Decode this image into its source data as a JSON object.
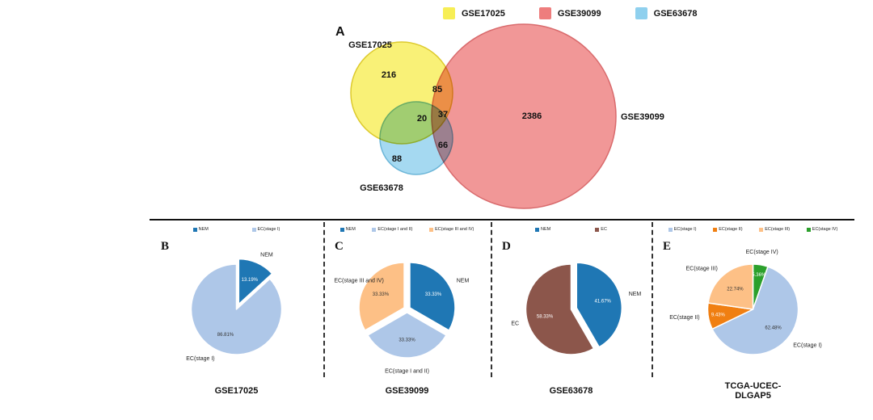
{
  "chart_data": [
    {
      "type": "venn",
      "panel_letter": "A",
      "legend": [
        {
          "label": "GSE17025",
          "color": "#f7ee55"
        },
        {
          "label": "GSE39099",
          "color": "#ee7d7d"
        },
        {
          "label": "GSE63678",
          "color": "#8fd0ee"
        }
      ],
      "sets": [
        {
          "name": "GSE17025",
          "color": "#f7ee55",
          "only_count": 216
        },
        {
          "name": "GSE39099",
          "color": "#ee7d7d",
          "only_count": 2386
        },
        {
          "name": "GSE63678",
          "color": "#8fd0ee",
          "only_count": 88
        }
      ],
      "overlaps": {
        "GSE17025_and_GSE39099": 85,
        "GSE17025_and_GSE63678": 20,
        "GSE39099_and_GSE63678": 66,
        "all_three": 37
      }
    },
    {
      "type": "pie",
      "panel_letter": "B",
      "title_lines": [
        "GSE17025"
      ],
      "slices": [
        {
          "label": "NEM",
          "value": 13.19,
          "pct": "13.19%",
          "color": "#1f77b4",
          "label_color": "#ffffff",
          "explode": 7
        },
        {
          "label": "EC(stage I)",
          "value": 86.81,
          "pct": "86.81%",
          "color": "#aec7e8",
          "label_color": "#333333",
          "explode": 0
        }
      ],
      "legend": [
        "NEM",
        "EC(stage I)"
      ]
    },
    {
      "type": "pie",
      "panel_letter": "C",
      "title_lines": [
        "GSE39099"
      ],
      "slices": [
        {
          "label": "NEM",
          "value": 33.33,
          "pct": "33.33%",
          "color": "#1f77b4",
          "label_color": "#ffffff",
          "explode": 4
        },
        {
          "label": "EC(stage I and II)",
          "value": 33.33,
          "pct": "33.33%",
          "color": "#aec7e8",
          "label_color": "#333333",
          "explode": 4
        },
        {
          "label": "EC(stage III and IV)",
          "value": 33.33,
          "pct": "33.33%",
          "color": "#fdc086",
          "label_color": "#333333",
          "explode": 4
        }
      ],
      "legend": [
        "NEM",
        "EC(stage I and II)",
        "EC(stage III and IV)"
      ]
    },
    {
      "type": "pie",
      "panel_letter": "D",
      "title_lines": [
        "GSE63678"
      ],
      "slices": [
        {
          "label": "NEM",
          "value": 41.67,
          "pct": "41.67%",
          "color": "#1f77b4",
          "label_color": "#ffffff",
          "explode": 7
        },
        {
          "label": "EC",
          "value": 58.33,
          "pct": "58.33%",
          "color": "#8c564b",
          "label_color": "#ffffff",
          "explode": 0
        }
      ],
      "legend": [
        "NEM",
        "EC"
      ]
    },
    {
      "type": "pie",
      "panel_letter": "E",
      "title_lines": [
        "TCGA-UCEC-",
        "DLGAP5"
      ],
      "slices": [
        {
          "label": "EC(stage IV)",
          "value": 5.36,
          "pct": "5.36%",
          "color": "#2ca02c",
          "label_color": "#ffffff",
          "explode": 0
        },
        {
          "label": "EC(stage I)",
          "value": 62.48,
          "pct": "62.48%",
          "color": "#aec7e8",
          "label_color": "#333333",
          "explode": 0
        },
        {
          "label": "EC(stage II)",
          "value": 9.43,
          "pct": "9.43%",
          "color": "#f07f12",
          "label_color": "#ffffff",
          "explode": 0
        },
        {
          "label": "EC(stage III)",
          "value": 22.74,
          "pct": "22.74%",
          "color": "#fdc086",
          "label_color": "#333333",
          "explode": 0
        }
      ],
      "legend": [
        "EC(stage I)",
        "EC(stage II)",
        "EC(stage III)",
        "EC(stage IV)"
      ]
    }
  ]
}
